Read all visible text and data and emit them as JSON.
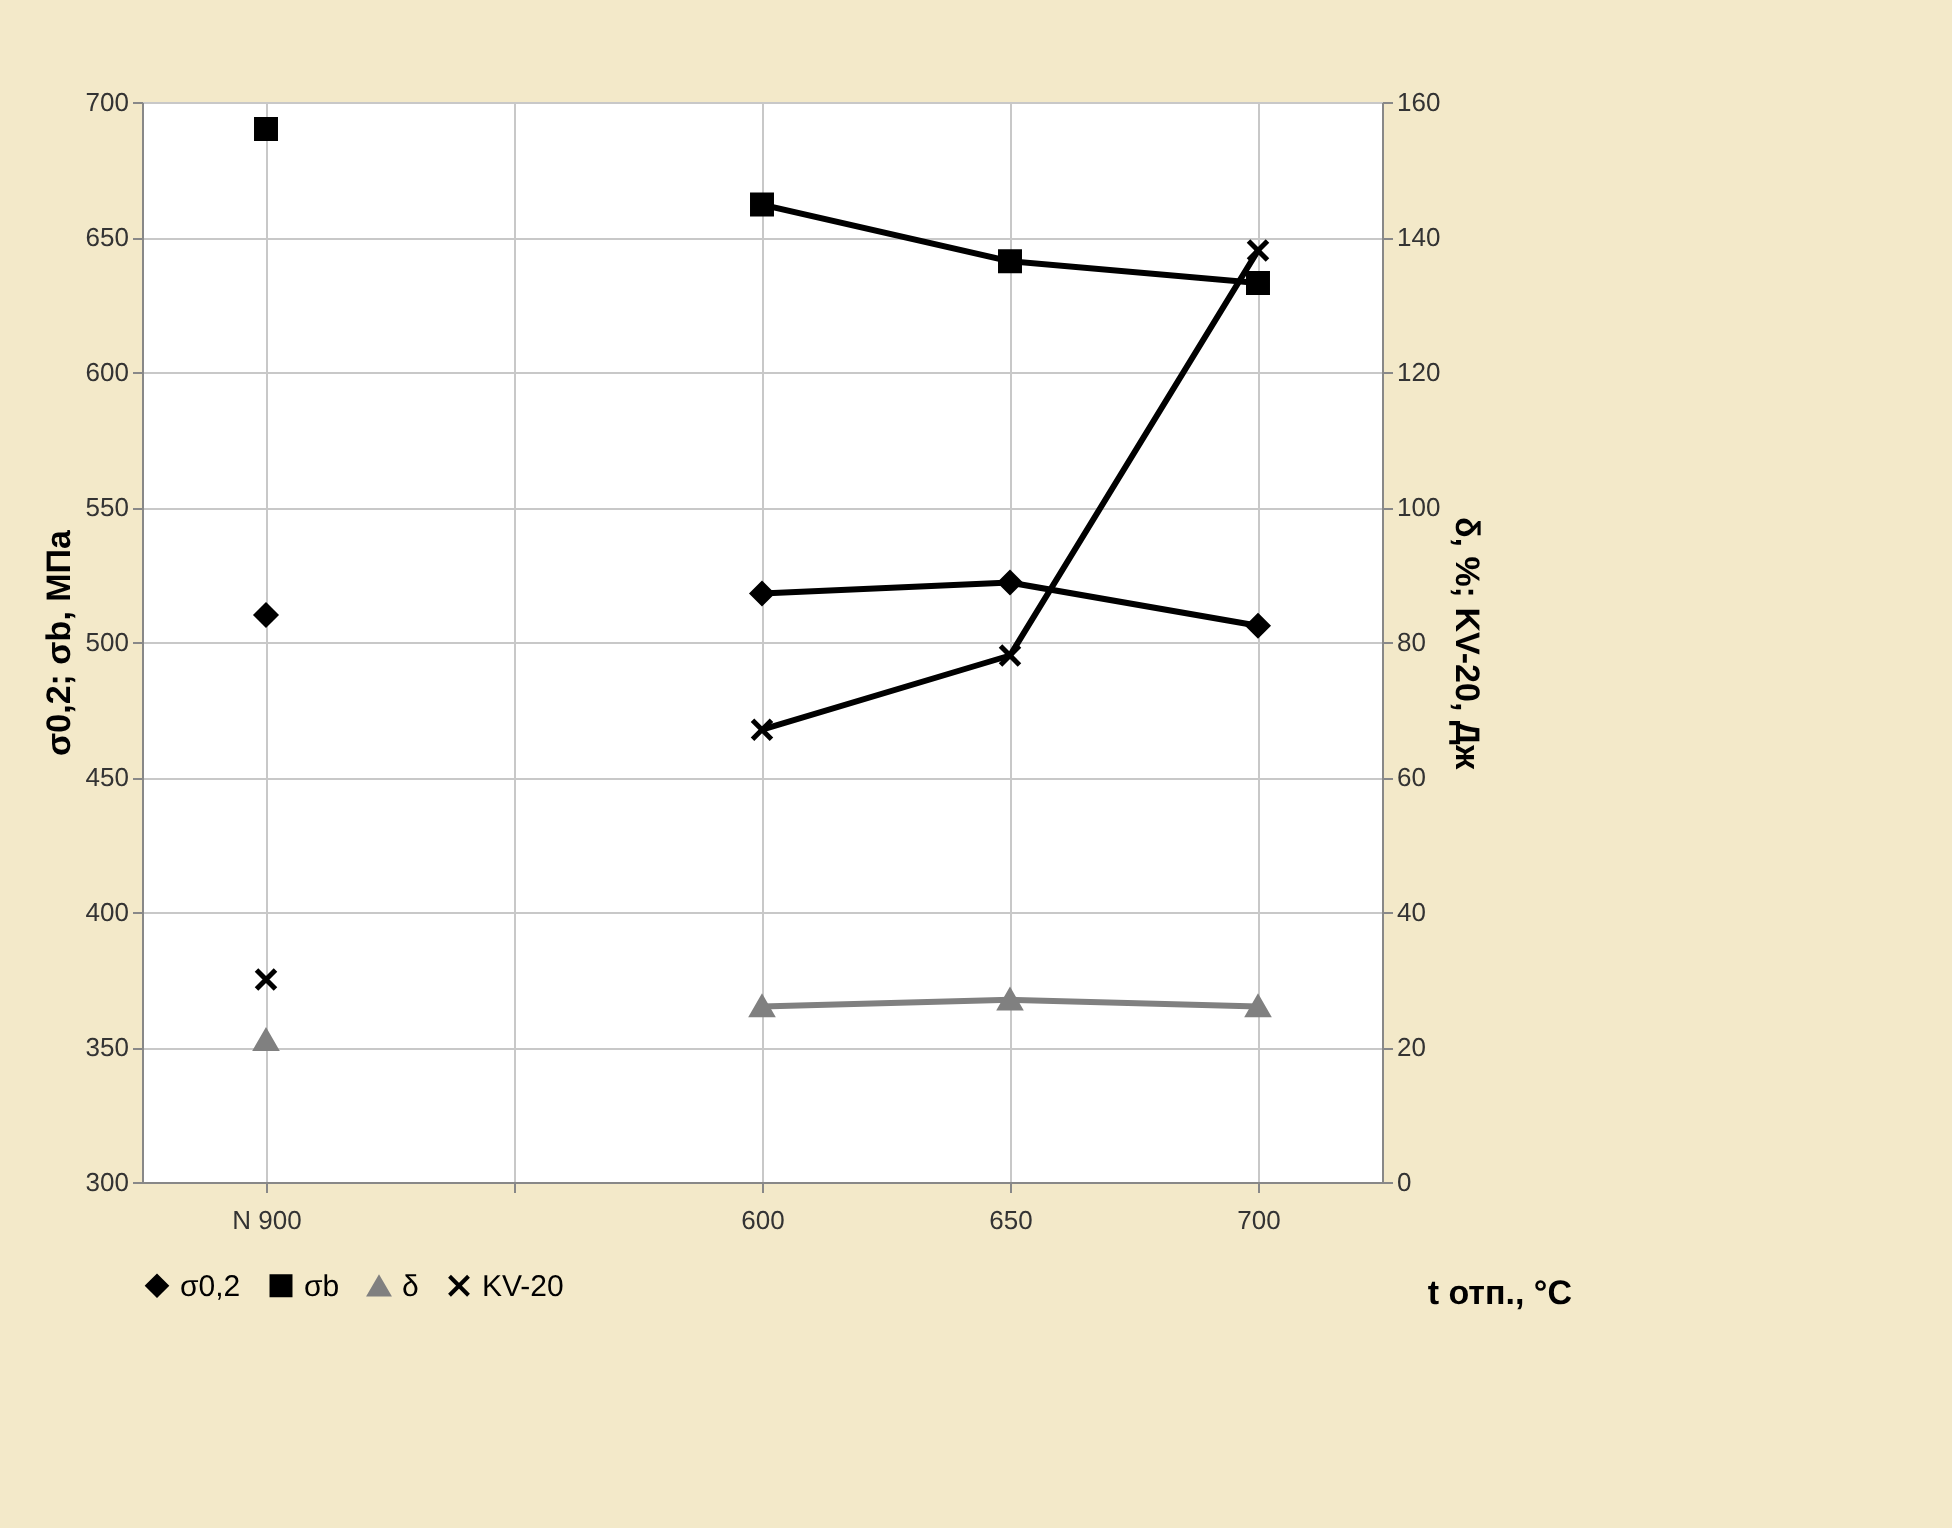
{
  "chart_data": {
    "type": "line",
    "categories": [
      "N 900",
      null,
      "600",
      "650",
      "700"
    ],
    "xlabel": "t отп., °C",
    "ylabel": "σ0,2; σb, МПа",
    "y2label": "δ, %; KV-20, Дж",
    "ylim": [
      300,
      700
    ],
    "yticks": [
      300,
      350,
      400,
      450,
      500,
      550,
      600,
      650,
      700
    ],
    "y2lim": [
      0,
      160
    ],
    "y2ticks": [
      0,
      20,
      40,
      60,
      80,
      100,
      120,
      140,
      160
    ],
    "grid": true,
    "legend": "bottom",
    "line_style": "solid",
    "series": [
      {
        "name": "σ0,2",
        "color": "#000000",
        "marker": "diamond",
        "values": [
          510,
          null,
          518,
          522,
          506
        ]
      },
      {
        "name": "σb",
        "color": "#000000",
        "marker": "square",
        "values": [
          690,
          null,
          662,
          641,
          633
        ]
      },
      {
        "name": "δ",
        "color": "#808080",
        "marker": "triangle",
        "axis": "y2",
        "values": [
          21,
          null,
          26,
          27,
          26
        ]
      },
      {
        "name": "KV-20",
        "color": "#000000",
        "marker": "cross",
        "axis": "y2",
        "values": [
          30,
          null,
          67,
          78,
          138
        ]
      }
    ]
  }
}
